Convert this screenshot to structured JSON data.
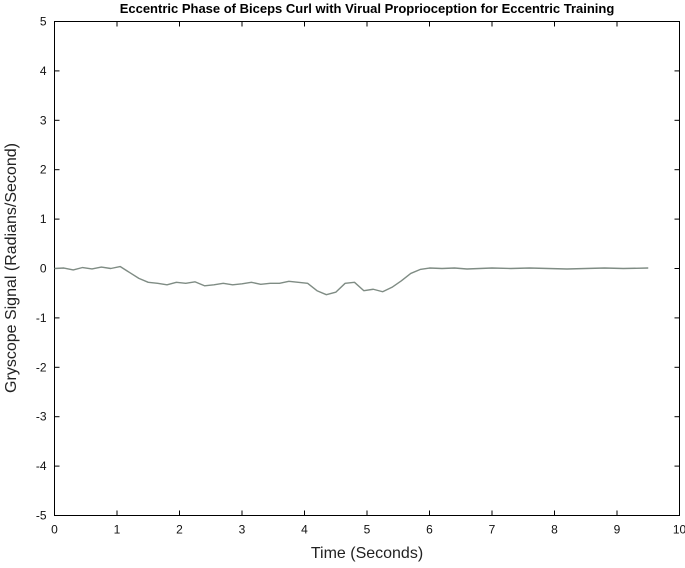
{
  "chart_data": {
    "type": "line",
    "title": "Eccentric Phase of Biceps Curl with Virual Proprioception for Eccentric Training",
    "xlabel": "Time (Seconds)",
    "ylabel": "Gryscope Signal (Radians/Second)",
    "xlim": [
      0,
      10
    ],
    "ylim": [
      -5,
      5
    ],
    "xticks": [
      "0",
      "1",
      "2",
      "3",
      "4",
      "5",
      "6",
      "7",
      "8",
      "9",
      "10"
    ],
    "yticks": [
      "-5",
      "-4",
      "-3",
      "-2",
      "-1",
      "0",
      "1",
      "2",
      "3",
      "4",
      "5"
    ],
    "grid": false,
    "series": [
      {
        "color": "#7f8c84",
        "x": [
          0,
          0.15,
          0.3,
          0.45,
          0.6,
          0.75,
          0.9,
          1.05,
          1.2,
          1.35,
          1.5,
          1.65,
          1.8,
          1.95,
          2.1,
          2.25,
          2.4,
          2.55,
          2.7,
          2.85,
          3.0,
          3.15,
          3.3,
          3.45,
          3.6,
          3.75,
          3.9,
          4.05,
          4.2,
          4.35,
          4.5,
          4.65,
          4.8,
          4.95,
          5.1,
          5.25,
          5.4,
          5.55,
          5.7,
          5.85,
          6.0,
          6.2,
          6.4,
          6.6,
          6.8,
          7.0,
          7.3,
          7.6,
          7.9,
          8.2,
          8.5,
          8.8,
          9.1,
          9.5
        ],
        "y": [
          0.0,
          0.01,
          -0.03,
          0.02,
          -0.01,
          0.03,
          0.0,
          0.04,
          -0.08,
          -0.2,
          -0.28,
          -0.3,
          -0.33,
          -0.28,
          -0.3,
          -0.27,
          -0.35,
          -0.33,
          -0.3,
          -0.33,
          -0.31,
          -0.28,
          -0.32,
          -0.3,
          -0.3,
          -0.26,
          -0.28,
          -0.3,
          -0.45,
          -0.53,
          -0.48,
          -0.3,
          -0.28,
          -0.45,
          -0.42,
          -0.47,
          -0.38,
          -0.25,
          -0.1,
          -0.02,
          0.01,
          0.0,
          0.01,
          -0.01,
          0.0,
          0.01,
          0.0,
          0.01,
          0.0,
          -0.01,
          0.0,
          0.01,
          0.0,
          0.01
        ]
      }
    ]
  }
}
